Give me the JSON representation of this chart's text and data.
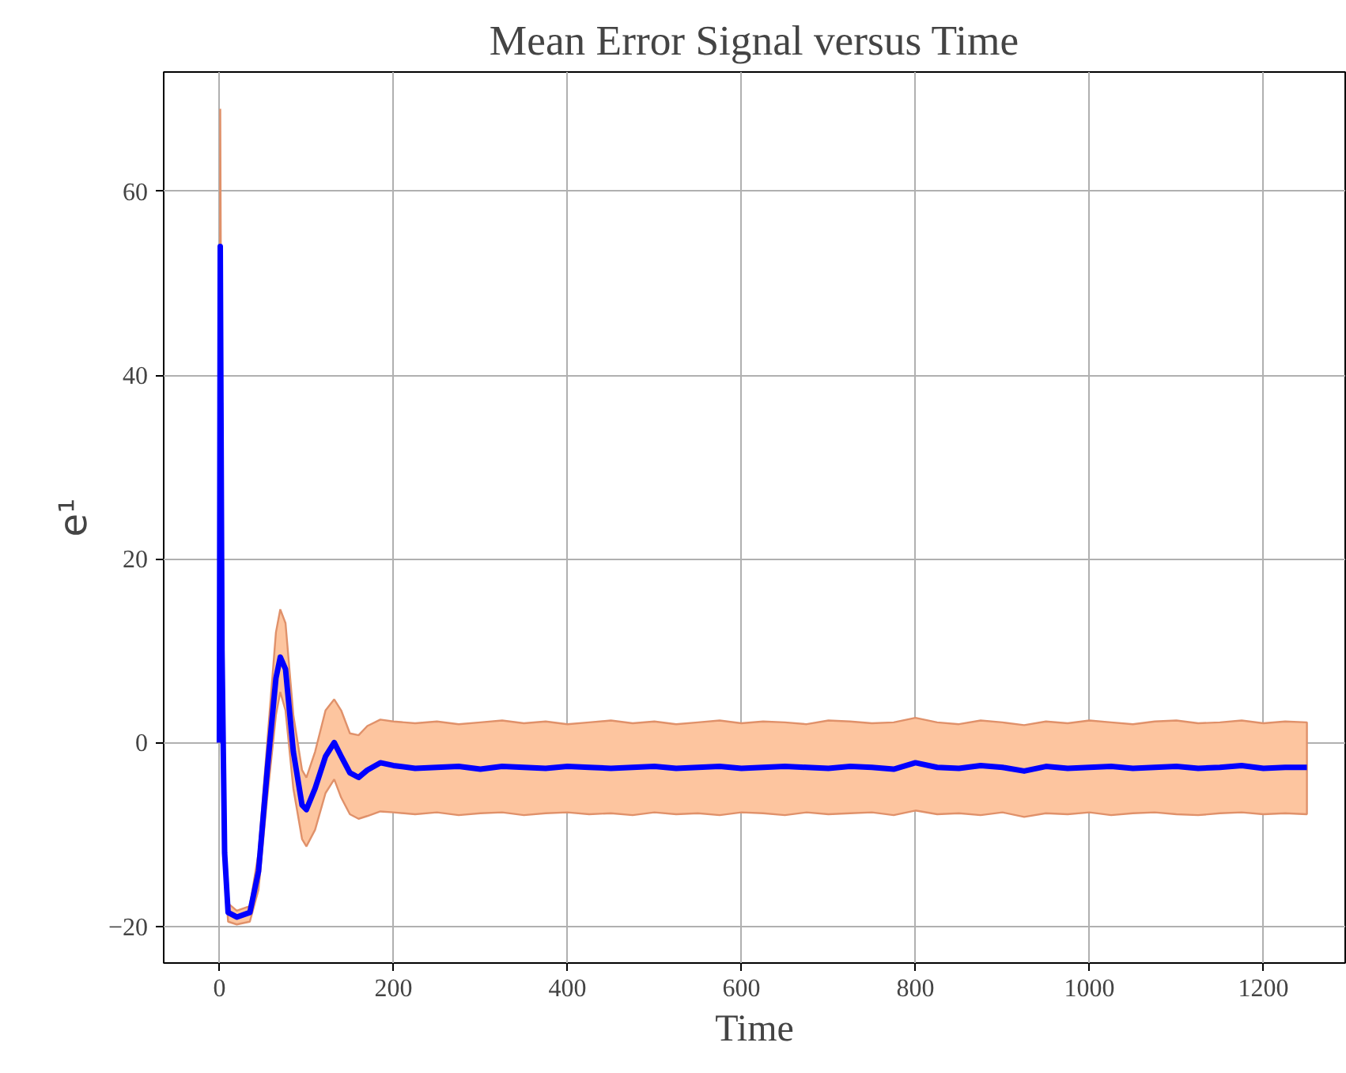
{
  "chart_data": {
    "type": "line",
    "title": "Mean Error Signal versus Time",
    "xlabel": "Time",
    "ylabel": "e¹",
    "xlim": [
      -64,
      1294
    ],
    "ylim": [
      -24,
      73
    ],
    "xticks": [
      0,
      200,
      400,
      600,
      800,
      1000,
      1200
    ],
    "yticks": [
      -20,
      0,
      20,
      40,
      60
    ],
    "grid": true,
    "series": [
      {
        "color": "#0000ff",
        "x": [
          0,
          1,
          3,
          6,
          10,
          20,
          35,
          45,
          55,
          65,
          70,
          76,
          85,
          95,
          100,
          110,
          122,
          132,
          140,
          150,
          160,
          170,
          185,
          200,
          225,
          250,
          275,
          300,
          325,
          350,
          375,
          400,
          425,
          450,
          475,
          500,
          525,
          550,
          575,
          600,
          625,
          650,
          675,
          700,
          725,
          750,
          775,
          800,
          825,
          850,
          875,
          900,
          925,
          950,
          975,
          1000,
          1025,
          1050,
          1075,
          1100,
          1125,
          1150,
          1175,
          1200,
          1225,
          1250
        ],
        "values": [
          0,
          54,
          10,
          -12,
          -18.5,
          -19,
          -18.5,
          -14,
          -3,
          7,
          9.3,
          8,
          -1,
          -6.8,
          -7.3,
          -5,
          -1.5,
          0,
          -1.5,
          -3.3,
          -3.8,
          -3,
          -2.2,
          -2.5,
          -2.8,
          -2.7,
          -2.6,
          -2.9,
          -2.6,
          -2.7,
          -2.8,
          -2.6,
          -2.7,
          -2.8,
          -2.7,
          -2.6,
          -2.8,
          -2.7,
          -2.6,
          -2.8,
          -2.7,
          -2.6,
          -2.7,
          -2.8,
          -2.6,
          -2.7,
          -2.9,
          -2.2,
          -2.7,
          -2.8,
          -2.5,
          -2.7,
          -3.1,
          -2.6,
          -2.8,
          -2.7,
          -2.6,
          -2.8,
          -2.7,
          -2.6,
          -2.8,
          -2.7,
          -2.5,
          -2.8,
          -2.7,
          -2.7
        ],
        "lower": [
          0,
          40,
          5,
          -14,
          -19.5,
          -19.8,
          -19.5,
          -16,
          -6,
          3,
          5.5,
          3.5,
          -5,
          -10.5,
          -11.3,
          -9.5,
          -5.5,
          -4,
          -6,
          -7.8,
          -8.3,
          -8,
          -7.5,
          -7.6,
          -7.8,
          -7.6,
          -7.9,
          -7.7,
          -7.6,
          -7.9,
          -7.7,
          -7.6,
          -7.8,
          -7.7,
          -7.9,
          -7.6,
          -7.8,
          -7.7,
          -7.9,
          -7.6,
          -7.7,
          -7.9,
          -7.6,
          -7.8,
          -7.7,
          -7.6,
          -7.9,
          -7.4,
          -7.8,
          -7.7,
          -7.9,
          -7.6,
          -8.1,
          -7.7,
          -7.8,
          -7.6,
          -7.9,
          -7.7,
          -7.6,
          -7.8,
          -7.9,
          -7.7,
          -7.6,
          -7.8,
          -7.7,
          -7.8
        ],
        "upper": [
          0,
          69,
          20,
          -9,
          -17.5,
          -18.3,
          -17.8,
          -12,
          0,
          12,
          14.5,
          13,
          3,
          -3,
          -3.8,
          -1,
          3.5,
          4.7,
          3.5,
          1,
          0.8,
          1.8,
          2.5,
          2.3,
          2.1,
          2.3,
          2.0,
          2.2,
          2.4,
          2.1,
          2.3,
          2.0,
          2.2,
          2.4,
          2.1,
          2.3,
          2.0,
          2.2,
          2.4,
          2.1,
          2.3,
          2.2,
          2.0,
          2.4,
          2.3,
          2.1,
          2.2,
          2.7,
          2.2,
          2.0,
          2.4,
          2.2,
          1.9,
          2.3,
          2.1,
          2.4,
          2.2,
          2.0,
          2.3,
          2.4,
          2.1,
          2.2,
          2.4,
          2.1,
          2.3,
          2.2
        ]
      }
    ]
  }
}
